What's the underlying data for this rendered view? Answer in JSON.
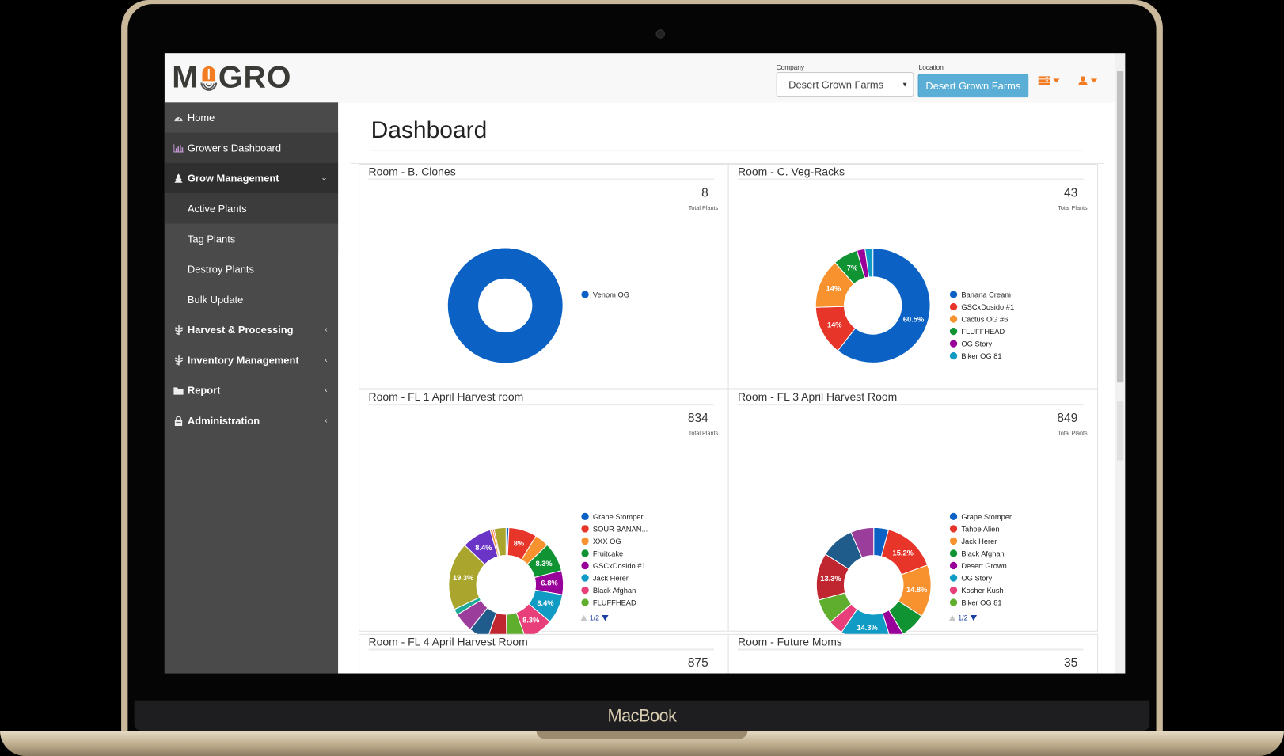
{
  "device": {
    "brand_label": "MacBook"
  },
  "app": {
    "logo": "MOGRO",
    "company": {
      "label": "Company",
      "value": "Desert Grown Farms"
    },
    "location": {
      "label": "Location",
      "value": "Desert Grown Farms"
    }
  },
  "sidebar": {
    "items": [
      {
        "label": "Home",
        "icon": "dashboard-gauge-icon"
      },
      {
        "label": "Grower's Dashboard",
        "icon": "bar-chart-icon"
      },
      {
        "label": "Grow Management",
        "icon": "tree-icon",
        "expanded": true
      },
      {
        "label": "Active Plants"
      },
      {
        "label": "Tag Plants"
      },
      {
        "label": "Destroy Plants"
      },
      {
        "label": "Bulk Update"
      },
      {
        "label": "Harvest & Processing",
        "icon": "leaf-icon"
      },
      {
        "label": "Inventory Management",
        "icon": "leaf-icon"
      },
      {
        "label": "Report",
        "icon": "folder-icon"
      },
      {
        "label": "Administration",
        "icon": "lock-icon"
      }
    ]
  },
  "page": {
    "title": "Dashboard"
  },
  "total_plants_label": "Total Plants",
  "rooms": [
    {
      "title": "Room - B. Clones",
      "total": "8",
      "legend": [
        {
          "name": "Venom OG",
          "color": "#0b62c4"
        }
      ],
      "slices": [
        {
          "value": 100,
          "color": "#0b62c4",
          "label": ""
        }
      ]
    },
    {
      "title": "Room - C. Veg-Racks",
      "total": "43",
      "legend": [
        {
          "name": "Banana Cream",
          "color": "#0b62c4"
        },
        {
          "name": "GSCxDosido #1",
          "color": "#e8352a"
        },
        {
          "name": "Cactus OG #6",
          "color": "#f7922f"
        },
        {
          "name": "FLUFFHEAD",
          "color": "#0f9333"
        },
        {
          "name": "OG Story",
          "color": "#990099"
        },
        {
          "name": "Biker OG 81",
          "color": "#0f9bc4"
        }
      ],
      "slices": [
        {
          "value": 60.5,
          "color": "#0b62c4",
          "label": "60.5%"
        },
        {
          "value": 14,
          "color": "#e8352a",
          "label": "14%"
        },
        {
          "value": 14,
          "color": "#f7922f",
          "label": "14%"
        },
        {
          "value": 7,
          "color": "#0f9333",
          "label": "7%"
        },
        {
          "value": 2.3,
          "color": "#990099",
          "label": ""
        },
        {
          "value": 2.2,
          "color": "#0f9bc4",
          "label": ""
        }
      ]
    },
    {
      "title": "Room - FL 1 April Harvest room",
      "total": "834",
      "legend": [
        {
          "name": "Grape Stomper...",
          "color": "#0b62c4"
        },
        {
          "name": "SOUR BANAN...",
          "color": "#e8352a"
        },
        {
          "name": "XXX OG",
          "color": "#f7922f"
        },
        {
          "name": "Fruitcake",
          "color": "#0f9333"
        },
        {
          "name": "GSCxDosido #1",
          "color": "#990099"
        },
        {
          "name": "Jack Herer",
          "color": "#0f9bc4"
        },
        {
          "name": "Black Afghan",
          "color": "#e83e7a"
        },
        {
          "name": "FLUFFHEAD",
          "color": "#5fae2e"
        }
      ],
      "pager": "1/2",
      "slices": [
        {
          "value": 0.8,
          "color": "#0b62c4",
          "label": ""
        },
        {
          "value": 8,
          "color": "#e8352a",
          "label": "8%"
        },
        {
          "value": 4,
          "color": "#f7922f",
          "label": ""
        },
        {
          "value": 8.3,
          "color": "#0f9333",
          "label": "8.3%"
        },
        {
          "value": 6.8,
          "color": "#990099",
          "label": "6.8%"
        },
        {
          "value": 8.4,
          "color": "#0f9bc4",
          "label": "8.4%"
        },
        {
          "value": 8.3,
          "color": "#e83e7a",
          "label": "8.3%"
        },
        {
          "value": 5.5,
          "color": "#5fae2e",
          "label": ""
        },
        {
          "value": 5.5,
          "color": "#c0262f",
          "label": ""
        },
        {
          "value": 5.5,
          "color": "#1f5c8c",
          "label": ""
        },
        {
          "value": 5.5,
          "color": "#9b3d9b",
          "label": ""
        },
        {
          "value": 1.7,
          "color": "#1fab99",
          "label": ""
        },
        {
          "value": 19.3,
          "color": "#aaa52d",
          "label": "19.3%"
        },
        {
          "value": 8.4,
          "color": "#6a34c6",
          "label": "8.4%"
        },
        {
          "value": 0.7,
          "color": "#f7922f",
          "label": ""
        },
        {
          "value": 0.4,
          "color": "#e8352a",
          "label": ""
        },
        {
          "value": 3.4,
          "color": "#aaa52d",
          "label": ""
        }
      ]
    },
    {
      "title": "Room - FL 3 April Harvest Room",
      "total": "849",
      "legend": [
        {
          "name": "Grape Stomper...",
          "color": "#0b62c4"
        },
        {
          "name": "Tahoe Alien",
          "color": "#e8352a"
        },
        {
          "name": "Jack Herer",
          "color": "#f7922f"
        },
        {
          "name": "Black Afghan",
          "color": "#0f9333"
        },
        {
          "name": "Desert Grown...",
          "color": "#990099"
        },
        {
          "name": "OG Story",
          "color": "#0f9bc4"
        },
        {
          "name": "Kosher Kush",
          "color": "#e83e7a"
        },
        {
          "name": "Biker OG 81",
          "color": "#5fae2e"
        }
      ],
      "pager": "1/2",
      "slices": [
        {
          "value": 4.2,
          "color": "#0b62c4",
          "label": ""
        },
        {
          "value": 15.2,
          "color": "#e8352a",
          "label": "15.2%"
        },
        {
          "value": 14.8,
          "color": "#f7922f",
          "label": "14.8%"
        },
        {
          "value": 7.2,
          "color": "#0f9333",
          "label": ""
        },
        {
          "value": 3.8,
          "color": "#990099",
          "label": ""
        },
        {
          "value": 14.3,
          "color": "#0f9bc4",
          "label": "14.3%"
        },
        {
          "value": 4.2,
          "color": "#e83e7a",
          "label": ""
        },
        {
          "value": 7,
          "color": "#5fae2e",
          "label": ""
        },
        {
          "value": 13.3,
          "color": "#c0262f",
          "label": "13.3%"
        },
        {
          "value": 9.5,
          "color": "#1f5c8c",
          "label": ""
        },
        {
          "value": 6.5,
          "color": "#9b3d9b",
          "label": ""
        }
      ]
    },
    {
      "title": "Room - FL 4 April Harvest Room",
      "total": "875"
    },
    {
      "title": "Room - Future Moms",
      "total": "35"
    }
  ],
  "chart_data": [
    {
      "type": "pie",
      "title": "Room - B. Clones",
      "total": 8,
      "categories": [
        "Venom OG"
      ],
      "values": [
        100
      ]
    },
    {
      "type": "pie",
      "title": "Room - C. Veg-Racks",
      "total": 43,
      "categories": [
        "Banana Cream",
        "GSCxDosido #1",
        "Cactus OG #6",
        "FLUFFHEAD",
        "OG Story",
        "Biker OG 81"
      ],
      "values": [
        60.5,
        14,
        14,
        7,
        2.3,
        2.2
      ]
    },
    {
      "type": "pie",
      "title": "Room - FL 1 April Harvest room",
      "total": 834,
      "categories": [
        "Grape Stomper...",
        "SOUR BANAN...",
        "XXX OG",
        "Fruitcake",
        "GSCxDosido #1",
        "Jack Herer",
        "Black Afghan",
        "FLUFFHEAD"
      ],
      "labeled_values": {
        "SOUR BANAN...": 8,
        "Fruitcake": 8.3,
        "GSCxDosido #1": 6.8,
        "Jack Herer": 8.4,
        "Black Afghan": 8.3
      },
      "other_labeled_slices": [
        19.3,
        8.4
      ],
      "legend_page": "1/2"
    },
    {
      "type": "pie",
      "title": "Room - FL 3 April Harvest Room",
      "total": 849,
      "categories": [
        "Grape Stomper...",
        "Tahoe Alien",
        "Jack Herer",
        "Black Afghan",
        "Desert Grown...",
        "OG Story",
        "Kosher Kush",
        "Biker OG 81"
      ],
      "labeled_values": {
        "Tahoe Alien": 15.2,
        "Jack Herer": 14.8,
        "OG Story": 14.3
      },
      "other_labeled_slices": [
        13.3
      ],
      "legend_page": "1/2"
    }
  ]
}
